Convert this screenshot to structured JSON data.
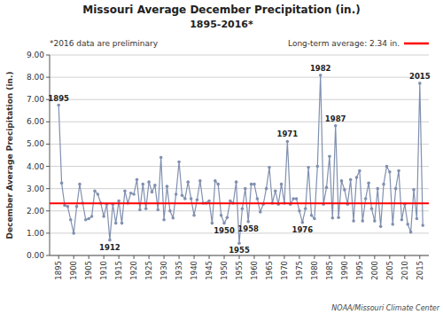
{
  "chart_data": {
    "type": "line",
    "title": "Missouri Average December Precipitation (in.)",
    "subtitle": "1895-2016*",
    "y_label": "December Average Precipitation (in.)",
    "note": "*2016 data are preliminary",
    "credit": "NOAA/Missouri Climate Center",
    "x": [
      1895,
      1896,
      1897,
      1898,
      1899,
      1900,
      1901,
      1902,
      1903,
      1904,
      1905,
      1906,
      1907,
      1908,
      1909,
      1910,
      1911,
      1912,
      1913,
      1914,
      1915,
      1916,
      1917,
      1918,
      1919,
      1920,
      1921,
      1922,
      1923,
      1924,
      1925,
      1926,
      1927,
      1928,
      1929,
      1930,
      1931,
      1932,
      1933,
      1934,
      1935,
      1936,
      1937,
      1938,
      1939,
      1940,
      1941,
      1942,
      1943,
      1944,
      1945,
      1946,
      1947,
      1948,
      1949,
      1950,
      1951,
      1952,
      1953,
      1954,
      1955,
      1956,
      1957,
      1958,
      1959,
      1960,
      1961,
      1962,
      1963,
      1964,
      1965,
      1966,
      1967,
      1968,
      1969,
      1970,
      1971,
      1972,
      1973,
      1974,
      1975,
      1976,
      1977,
      1978,
      1979,
      1980,
      1981,
      1982,
      1983,
      1984,
      1985,
      1986,
      1987,
      1988,
      1989,
      1990,
      1991,
      1992,
      1993,
      1994,
      1995,
      1996,
      1997,
      1998,
      1999,
      2000,
      2001,
      2002,
      2003,
      2004,
      2005,
      2006,
      2007,
      2008,
      2009,
      2010,
      2011,
      2012,
      2013,
      2014,
      2015,
      2016
    ],
    "series": [
      {
        "color": "#8090B0",
        "marker": "circle",
        "values": [
          6.75,
          3.25,
          2.25,
          2.2,
          1.6,
          1.0,
          2.2,
          3.2,
          2.35,
          1.6,
          1.65,
          1.75,
          2.9,
          2.75,
          2.35,
          1.75,
          2.3,
          0.69,
          2.3,
          1.45,
          2.45,
          1.45,
          2.9,
          2.35,
          2.8,
          2.75,
          3.4,
          2.05,
          3.2,
          2.1,
          3.3,
          2.85,
          3.15,
          2.05,
          4.4,
          1.6,
          3.1,
          2.0,
          1.68,
          2.75,
          4.2,
          2.7,
          2.55,
          3.3,
          2.55,
          1.8,
          2.5,
          3.35,
          2.35,
          2.35,
          2.45,
          1.45,
          3.35,
          3.2,
          1.8,
          1.45,
          1.7,
          2.45,
          2.35,
          3.3,
          0.55,
          2.1,
          3.0,
          1.52,
          3.2,
          3.2,
          2.55,
          1.95,
          2.3,
          3.0,
          3.95,
          2.35,
          2.9,
          2.3,
          3.2,
          2.35,
          5.12,
          2.3,
          2.55,
          2.55,
          2.0,
          1.48,
          2.1,
          3.95,
          1.8,
          1.65,
          4.0,
          8.09,
          2.3,
          3.05,
          4.45,
          1.68,
          5.82,
          1.7,
          3.35,
          2.95,
          2.3,
          3.4,
          1.55,
          3.5,
          3.8,
          1.55,
          2.55,
          3.25,
          2.1,
          1.55,
          3.0,
          1.3,
          3.2,
          4.0,
          3.75,
          1.4,
          3.0,
          3.8,
          1.6,
          2.3,
          1.4,
          1.05,
          2.95,
          1.65,
          7.73,
          1.35
        ]
      }
    ],
    "reference_lines": [
      {
        "value": 2.34,
        "label": "Long-term average: 2.34 in.",
        "color": "#FF0000"
      }
    ],
    "annotations": [
      {
        "text": "1895",
        "x": 1895,
        "y": 6.75
      },
      {
        "text": "1912",
        "x": 1912,
        "y": 0.69
      },
      {
        "text": "1950",
        "x": 1950,
        "y": 1.45
      },
      {
        "text": "1955",
        "x": 1955,
        "y": 0.55
      },
      {
        "text": "1958",
        "x": 1958,
        "y": 1.52
      },
      {
        "text": "1971",
        "x": 1971,
        "y": 5.12
      },
      {
        "text": "1976",
        "x": 1976,
        "y": 1.48
      },
      {
        "text": "1982",
        "x": 1982,
        "y": 8.09
      },
      {
        "text": "1987",
        "x": 1987,
        "y": 5.82
      },
      {
        "text": "2015",
        "x": 2015,
        "y": 7.73
      }
    ],
    "xlim": [
      1892,
      2018
    ],
    "xticks": [
      1895,
      1900,
      1905,
      1910,
      1915,
      1920,
      1925,
      1930,
      1935,
      1940,
      1945,
      1950,
      1955,
      1960,
      1965,
      1970,
      1975,
      1980,
      1985,
      1990,
      1995,
      2000,
      2005,
      2010,
      2015
    ],
    "ylim": [
      0.0,
      9.0
    ],
    "yticks": [
      {
        "value": 0.0,
        "label": "0.00"
      },
      {
        "value": 1.0,
        "label": "1.00"
      },
      {
        "value": 2.0,
        "label": "2.00"
      },
      {
        "value": 3.0,
        "label": "3.00"
      },
      {
        "value": 4.0,
        "label": "4.00"
      },
      {
        "value": 5.0,
        "label": "5.00"
      },
      {
        "value": 6.0,
        "label": "6.00"
      },
      {
        "value": 7.0,
        "label": "7.00"
      },
      {
        "value": 8.0,
        "label": "8.00"
      },
      {
        "value": 9.0,
        "label": "9.00"
      }
    ],
    "grid": "y"
  }
}
